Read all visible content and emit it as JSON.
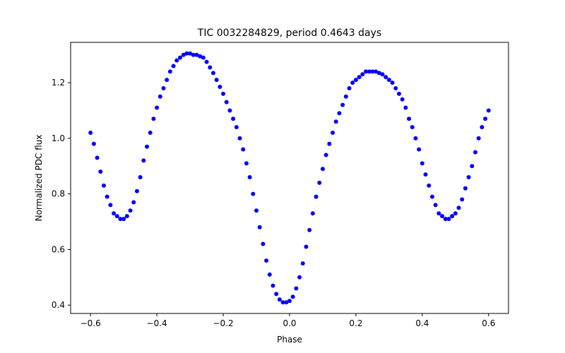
{
  "chart_data": {
    "type": "scatter",
    "title": "TIC 0032284829, period 0.4643 days",
    "xlabel": "Phase",
    "ylabel": "Normalized PDC flux",
    "xlim": [
      -0.66,
      0.66
    ],
    "ylim": [
      0.37,
      1.345
    ],
    "xticks": [
      -0.6,
      -0.4,
      -0.2,
      0.0,
      0.2,
      0.4,
      0.6
    ],
    "xtick_labels": [
      "−0.6",
      "−0.4",
      "−0.2",
      "0.0",
      "0.2",
      "0.4",
      "0.6"
    ],
    "yticks": [
      0.4,
      0.6,
      0.8,
      1.0,
      1.2
    ],
    "ytick_labels": [
      "0.4",
      "0.6",
      "0.8",
      "1.0",
      "1.2"
    ],
    "grid": false,
    "marker_color": "#0000ff",
    "series": [
      {
        "name": "flux",
        "x": [
          -0.6,
          -0.59,
          -0.58,
          -0.57,
          -0.56,
          -0.55,
          -0.54,
          -0.53,
          -0.52,
          -0.51,
          -0.5,
          -0.49,
          -0.48,
          -0.47,
          -0.46,
          -0.45,
          -0.44,
          -0.43,
          -0.42,
          -0.41,
          -0.4,
          -0.39,
          -0.38,
          -0.37,
          -0.36,
          -0.35,
          -0.34,
          -0.33,
          -0.32,
          -0.31,
          -0.3,
          -0.29,
          -0.28,
          -0.27,
          -0.26,
          -0.25,
          -0.24,
          -0.23,
          -0.22,
          -0.21,
          -0.2,
          -0.19,
          -0.18,
          -0.17,
          -0.16,
          -0.15,
          -0.14,
          -0.13,
          -0.12,
          -0.11,
          -0.1,
          -0.09,
          -0.08,
          -0.07,
          -0.06,
          -0.05,
          -0.04,
          -0.03,
          -0.02,
          -0.01,
          0.0,
          0.01,
          0.02,
          0.03,
          0.04,
          0.05,
          0.06,
          0.07,
          0.08,
          0.09,
          0.1,
          0.11,
          0.12,
          0.13,
          0.14,
          0.15,
          0.16,
          0.17,
          0.18,
          0.19,
          0.2,
          0.21,
          0.22,
          0.23,
          0.24,
          0.25,
          0.26,
          0.27,
          0.28,
          0.29,
          0.3,
          0.31,
          0.32,
          0.33,
          0.34,
          0.35,
          0.36,
          0.37,
          0.38,
          0.39,
          0.4,
          0.41,
          0.42,
          0.43,
          0.44,
          0.45,
          0.46,
          0.47,
          0.48,
          0.49,
          0.5,
          0.51,
          0.52,
          0.53,
          0.54,
          0.55,
          0.56,
          0.57,
          0.58,
          0.59,
          0.6
        ],
        "y": [
          1.02,
          0.98,
          0.93,
          0.88,
          0.83,
          0.79,
          0.76,
          0.73,
          0.72,
          0.71,
          0.71,
          0.72,
          0.74,
          0.77,
          0.81,
          0.86,
          0.92,
          0.97,
          1.02,
          1.07,
          1.11,
          1.15,
          1.18,
          1.21,
          1.24,
          1.26,
          1.28,
          1.29,
          1.3,
          1.305,
          1.305,
          1.3,
          1.3,
          1.295,
          1.29,
          1.275,
          1.255,
          1.235,
          1.21,
          1.185,
          1.16,
          1.13,
          1.1,
          1.07,
          1.04,
          1.0,
          0.96,
          0.91,
          0.86,
          0.8,
          0.74,
          0.68,
          0.62,
          0.56,
          0.51,
          0.47,
          0.44,
          0.42,
          0.41,
          0.41,
          0.415,
          0.43,
          0.46,
          0.5,
          0.55,
          0.61,
          0.67,
          0.73,
          0.79,
          0.84,
          0.89,
          0.94,
          0.98,
          1.02,
          1.06,
          1.09,
          1.12,
          1.15,
          1.18,
          1.2,
          1.21,
          1.22,
          1.23,
          1.24,
          1.24,
          1.24,
          1.24,
          1.235,
          1.23,
          1.22,
          1.21,
          1.2,
          1.18,
          1.16,
          1.14,
          1.11,
          1.07,
          1.04,
          1.0,
          0.96,
          0.91,
          0.87,
          0.83,
          0.79,
          0.76,
          0.73,
          0.72,
          0.71,
          0.71,
          0.72,
          0.73,
          0.75,
          0.78,
          0.82,
          0.86,
          0.9,
          0.95,
          1.0,
          1.04,
          1.07,
          1.1
        ]
      }
    ]
  }
}
